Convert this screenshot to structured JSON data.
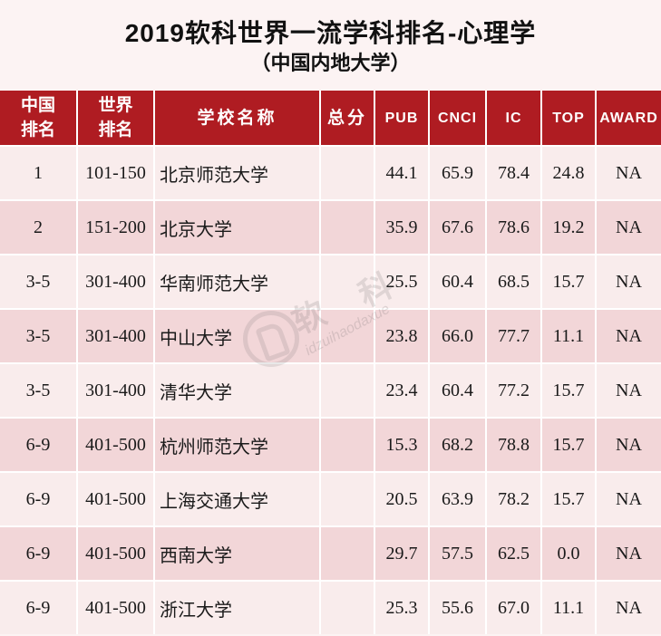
{
  "colors": {
    "header_bg": "#AF1C22",
    "header_text": "#FFFFFF",
    "row_light": "#F9ECEC",
    "row_dark": "#F2D6D8",
    "page_bg": "#FCF3F3",
    "grid_line": "#FFFFFF"
  },
  "watermark": {
    "char_1": "软",
    "char_2": "科",
    "tagline": "idzuihaodaxue",
    "logo_icon": "ruanke-logo-icon"
  },
  "chart_data": {
    "type": "table",
    "title": "2019软科世界一流学科排名-心理学",
    "subtitle": "（中国内地大学）",
    "headers": [
      "中国\n排名",
      "世界\n排名",
      "学校名称",
      "总分",
      "PUB",
      "CNCI",
      "IC",
      "TOP",
      "AWARD"
    ],
    "rows": [
      {
        "cn_rank": "1",
        "world_rank": "101-150",
        "university": "北京师范大学",
        "pub": "44.1",
        "cnci": "65.9",
        "ic": "78.4",
        "top": "24.8",
        "award": "NA"
      },
      {
        "cn_rank": "2",
        "world_rank": "151-200",
        "university": "北京大学",
        "pub": "35.9",
        "cnci": "67.6",
        "ic": "78.6",
        "top": "19.2",
        "award": "NA"
      },
      {
        "cn_rank": "3-5",
        "world_rank": "301-400",
        "university": "华南师范大学",
        "pub": "25.5",
        "cnci": "60.4",
        "ic": "68.5",
        "top": "15.7",
        "award": "NA"
      },
      {
        "cn_rank": "3-5",
        "world_rank": "301-400",
        "university": "中山大学",
        "pub": "23.8",
        "cnci": "66.0",
        "ic": "77.7",
        "top": "11.1",
        "award": "NA"
      },
      {
        "cn_rank": "3-5",
        "world_rank": "301-400",
        "university": "清华大学",
        "pub": "23.4",
        "cnci": "60.4",
        "ic": "77.2",
        "top": "15.7",
        "award": "NA"
      },
      {
        "cn_rank": "6-9",
        "world_rank": "401-500",
        "university": "杭州师范大学",
        "pub": "15.3",
        "cnci": "68.2",
        "ic": "78.8",
        "top": "15.7",
        "award": "NA"
      },
      {
        "cn_rank": "6-9",
        "world_rank": "401-500",
        "university": "上海交通大学",
        "pub": "20.5",
        "cnci": "63.9",
        "ic": "78.2",
        "top": "15.7",
        "award": "NA"
      },
      {
        "cn_rank": "6-9",
        "world_rank": "401-500",
        "university": "西南大学",
        "pub": "29.7",
        "cnci": "57.5",
        "ic": "62.5",
        "top": "0.0",
        "award": "NA"
      },
      {
        "cn_rank": "6-9",
        "world_rank": "401-500",
        "university": "浙江大学",
        "pub": "25.3",
        "cnci": "55.6",
        "ic": "67.0",
        "top": "11.1",
        "award": "NA"
      }
    ]
  }
}
